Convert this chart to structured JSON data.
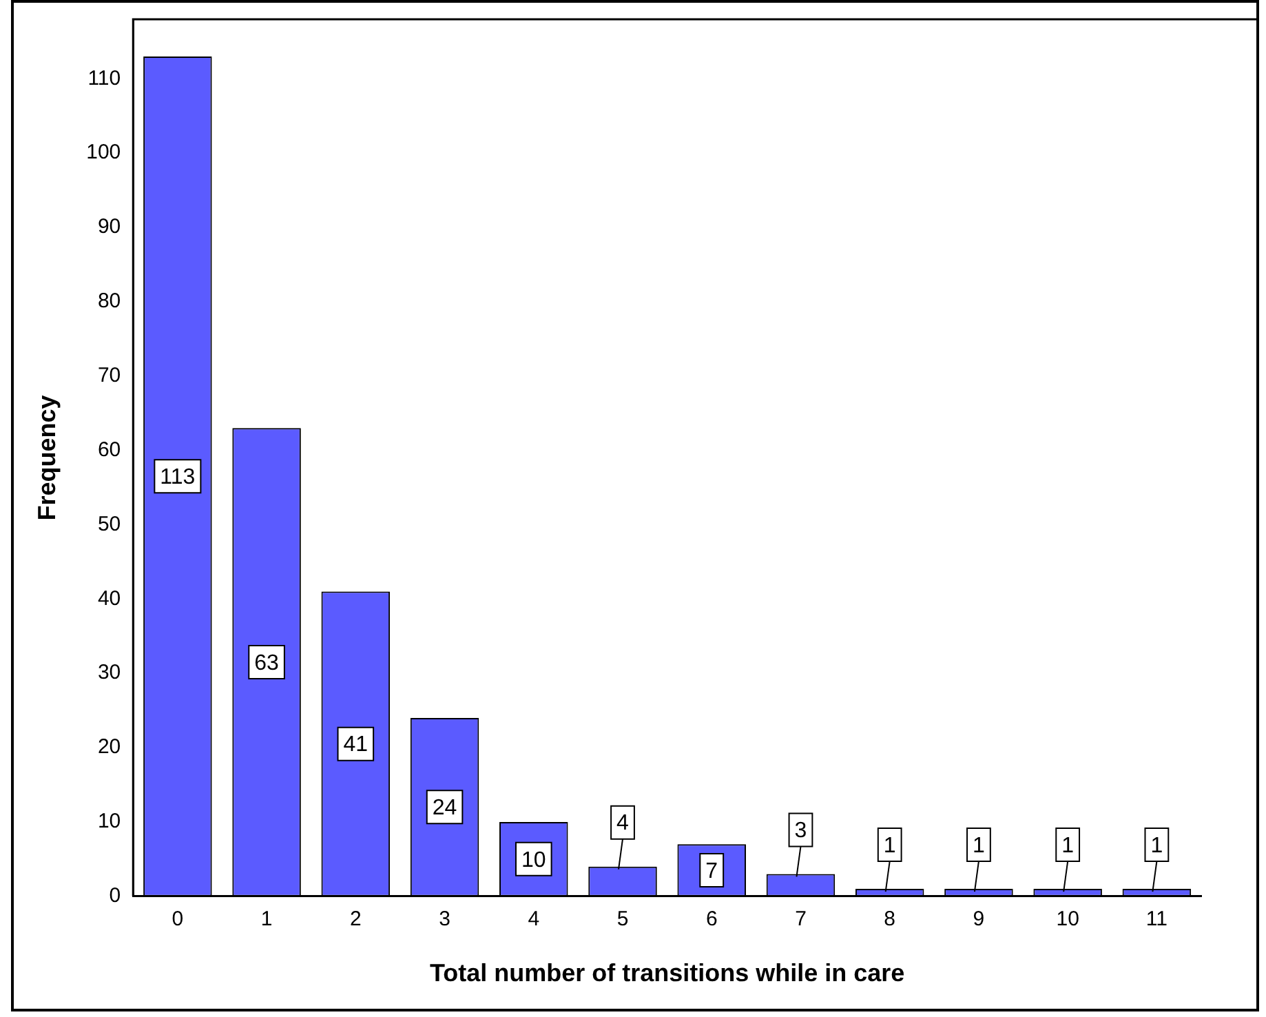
{
  "chart_data": {
    "type": "bar",
    "xlabel": "Total number of transitions while in care",
    "ylabel": "Frequency",
    "categories": [
      "0",
      "1",
      "2",
      "3",
      "4",
      "5",
      "6",
      "7",
      "8",
      "9",
      "10",
      "11"
    ],
    "values": [
      113,
      63,
      41,
      24,
      10,
      4,
      7,
      3,
      1,
      1,
      1,
      1
    ],
    "color": "#5b5bff",
    "ylim": [
      0,
      118
    ],
    "yticks": [
      0,
      10,
      20,
      30,
      40,
      50,
      60,
      70,
      80,
      90,
      100,
      110
    ],
    "grid": false,
    "legend": false,
    "data_labels": true
  }
}
